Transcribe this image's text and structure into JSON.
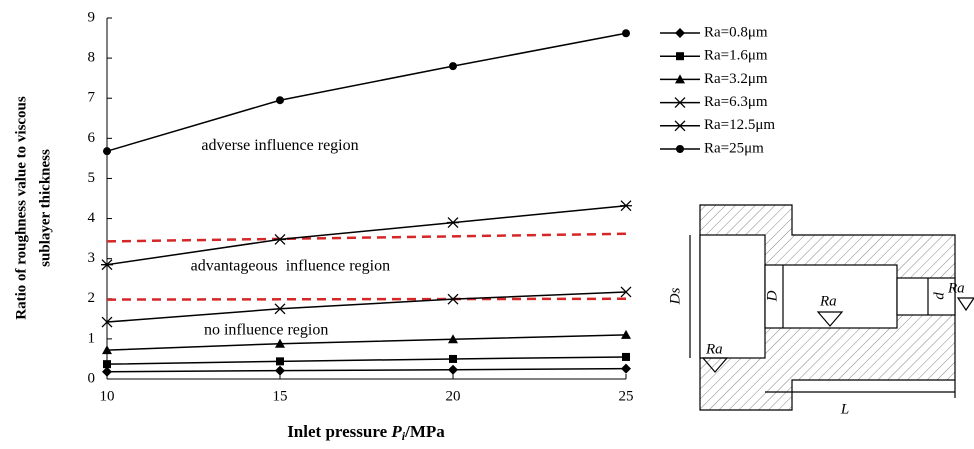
{
  "chart_data": {
    "type": "line",
    "y_label_lines": [
      "Ratio of roughness value to viscous",
      "sublayer thickness"
    ],
    "x_label": {
      "text": "Inlet pressure ",
      "var": "P",
      "sub": "i",
      "unit": "/MPa"
    },
    "x": [
      10,
      15,
      20,
      25
    ],
    "xlim": [
      10,
      25
    ],
    "xticks": [
      10,
      15,
      20,
      25
    ],
    "ylim": [
      0,
      9
    ],
    "yticks": [
      0,
      1,
      2,
      3,
      4,
      5,
      6,
      7,
      8,
      9
    ],
    "color": "#000000",
    "legend": "right",
    "series": [
      {
        "name": "Ra=0.8μm",
        "marker": "diamond",
        "values": [
          0.18,
          0.21,
          0.23,
          0.26
        ]
      },
      {
        "name": "Ra=1.6μm",
        "marker": "square",
        "values": [
          0.37,
          0.44,
          0.5,
          0.55
        ]
      },
      {
        "name": "Ra=3.2μm",
        "marker": "triangle",
        "values": [
          0.72,
          0.88,
          0.99,
          1.1
        ]
      },
      {
        "name": "Ra=6.3μm",
        "marker": "x",
        "values": [
          1.42,
          1.75,
          1.99,
          2.17
        ]
      },
      {
        "name": "Ra=12.5μm",
        "marker": "asterisk",
        "values": [
          2.85,
          3.48,
          3.9,
          4.32
        ]
      },
      {
        "name": "Ra=25μm",
        "marker": "circle",
        "values": [
          5.68,
          6.95,
          7.8,
          8.62
        ]
      }
    ],
    "boundaries": [
      {
        "color": "#d62728",
        "x": [
          10,
          25
        ],
        "values": [
          3.43,
          3.62
        ]
      },
      {
        "color": "#d62728",
        "x": [
          10,
          25
        ],
        "values": [
          1.98,
          2.0
        ]
      }
    ],
    "annotations": [
      {
        "text": "adverse influence region",
        "x": 15.0,
        "y": 5.8
      },
      {
        "text": "advantageous  influence region",
        "x": 15.3,
        "y": 2.8
      },
      {
        "text": "no influence region",
        "x": 14.6,
        "y": 1.2
      }
    ]
  },
  "diagram": {
    "labels": {
      "Ds": "Ds",
      "D": "D",
      "d": "d",
      "L": "L",
      "ra": [
        "Ra",
        "Ra",
        "Ra"
      ]
    }
  }
}
